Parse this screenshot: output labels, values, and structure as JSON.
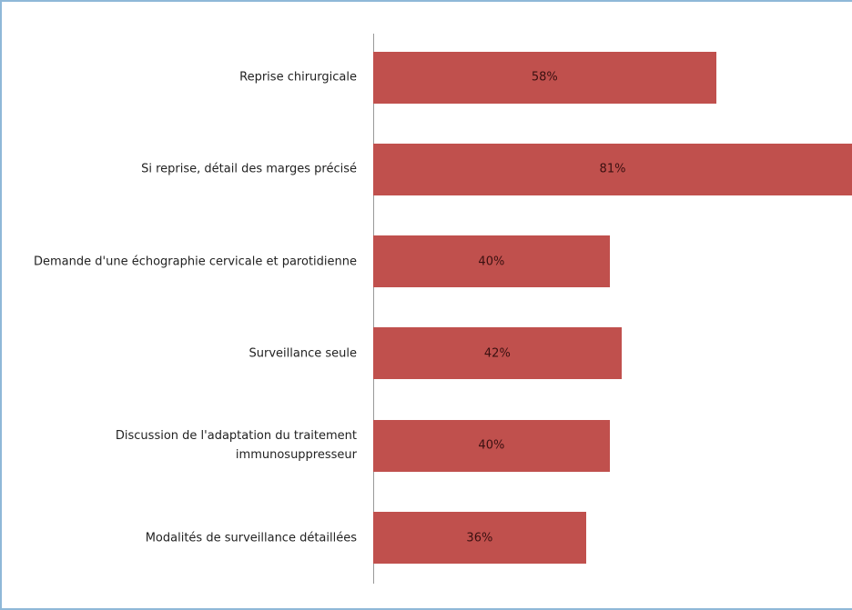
{
  "chart_data": {
    "type": "barh",
    "categories": [
      "Reprise chirurgicale",
      "Si reprise, détail des marges précisé",
      "Demande d'une échographie cervicale et parotidienne",
      "Surveillance seule",
      "Discussion de l'adaptation du traitement immunosuppresseur",
      "Modalités de surveillance détaillées"
    ],
    "values": [
      58,
      81,
      40,
      42,
      40,
      36
    ],
    "value_labels": [
      "58%",
      "81%",
      "40%",
      "42%",
      "40%",
      "36%"
    ],
    "color": "#c0504d",
    "xlim": [
      0,
      81
    ]
  }
}
